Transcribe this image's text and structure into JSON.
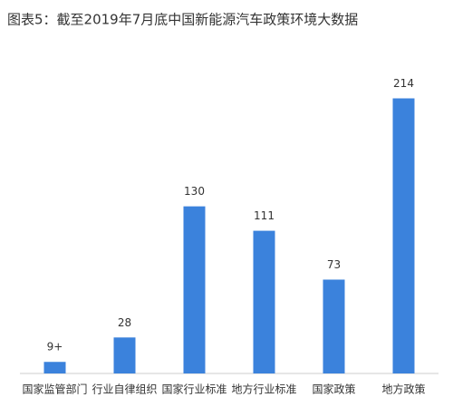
{
  "chart_data": {
    "type": "bar",
    "title": "图表5：截至2019年7月底中国新能源汽车政策环境大数据",
    "categories": [
      "国家监管部门",
      "行业自律组织",
      "国家行业标准",
      "地方行业标准",
      "国家政策",
      "地方政策"
    ],
    "values": [
      9,
      28,
      130,
      111,
      73,
      214
    ],
    "value_labels": [
      "9+",
      "28",
      "130",
      "111",
      "73",
      "214"
    ],
    "color": "#3b82dc",
    "ylim": [
      0,
      220
    ]
  }
}
